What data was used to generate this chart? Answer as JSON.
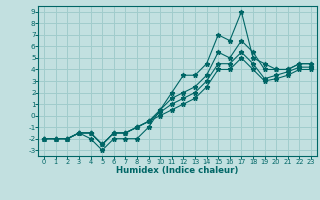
{
  "xlabel": "Humidex (Indice chaleur)",
  "xlim": [
    -0.5,
    23.5
  ],
  "ylim": [
    -3.5,
    9.5
  ],
  "xticks": [
    0,
    1,
    2,
    3,
    4,
    5,
    6,
    7,
    8,
    9,
    10,
    11,
    12,
    13,
    14,
    15,
    16,
    17,
    18,
    19,
    20,
    21,
    22,
    23
  ],
  "yticks": [
    -3,
    -2,
    -1,
    0,
    1,
    2,
    3,
    4,
    5,
    6,
    7,
    8,
    9
  ],
  "bg_color": "#c2e0e0",
  "grid_color": "#a0cccc",
  "line_color": "#006666",
  "series": [
    {
      "x": [
        0,
        1,
        2,
        3,
        4,
        5,
        6,
        7,
        8,
        9,
        10,
        11,
        12,
        13,
        14,
        15,
        16,
        17,
        18,
        19,
        20,
        21,
        22,
        23
      ],
      "y": [
        -2,
        -2,
        -2,
        -1.5,
        -2,
        -3,
        -2,
        -2,
        -2,
        -1,
        0.5,
        2,
        3.5,
        3.5,
        4.5,
        7,
        6.5,
        9,
        5,
        4.5,
        4,
        4,
        4.5,
        4.5
      ]
    },
    {
      "x": [
        0,
        1,
        2,
        3,
        4,
        5,
        6,
        7,
        8,
        9,
        10,
        11,
        12,
        13,
        14,
        15,
        16,
        17,
        18,
        19,
        20,
        21,
        22,
        23
      ],
      "y": [
        -2,
        -2,
        -2,
        -1.5,
        -1.5,
        -2.5,
        -1.5,
        -1.5,
        -1.0,
        -0.5,
        0.5,
        1.5,
        2.0,
        2.5,
        3.5,
        5.5,
        5.0,
        6.5,
        5.5,
        4.0,
        4.0,
        4.0,
        4.5,
        4.5
      ]
    },
    {
      "x": [
        0,
        1,
        2,
        3,
        4,
        5,
        6,
        7,
        8,
        9,
        10,
        11,
        12,
        13,
        14,
        15,
        16,
        17,
        18,
        19,
        20,
        21,
        22,
        23
      ],
      "y": [
        -2,
        -2,
        -2,
        -1.5,
        -1.5,
        -2.5,
        -1.5,
        -1.5,
        -1.0,
        -0.5,
        0.3,
        1.0,
        1.5,
        2.0,
        3.0,
        4.5,
        4.5,
        5.5,
        4.5,
        3.2,
        3.5,
        3.8,
        4.2,
        4.2
      ]
    },
    {
      "x": [
        0,
        1,
        2,
        3,
        4,
        5,
        6,
        7,
        8,
        9,
        10,
        11,
        12,
        13,
        14,
        15,
        16,
        17,
        18,
        19,
        20,
        21,
        22,
        23
      ],
      "y": [
        -2,
        -2,
        -2,
        -1.5,
        -1.5,
        -2.5,
        -1.5,
        -1.5,
        -1.0,
        -0.5,
        0.0,
        0.5,
        1.0,
        1.5,
        2.5,
        4.0,
        4.0,
        5.0,
        4.0,
        3.0,
        3.2,
        3.5,
        4.0,
        4.0
      ]
    }
  ]
}
